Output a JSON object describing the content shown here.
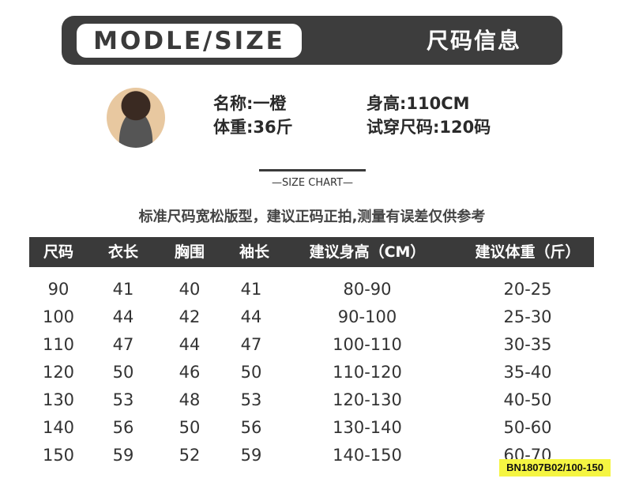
{
  "header": {
    "badge": "MODLE/SIZE",
    "title": "尺码信息"
  },
  "model": {
    "name": "名称:一橙",
    "height": "身高:110CM",
    "weight": "体重:36斤",
    "size": "试穿尺码:120码"
  },
  "size_chart_label": "—SIZE CHART—",
  "note": "标准尺码宽松版型，建议正码正拍,测量有误差仅供参考",
  "table": {
    "headers": [
      "尺码",
      "衣长",
      "胸围",
      "袖长",
      "建议身高（CM）",
      "建议体重（斤）"
    ],
    "rows": [
      [
        "90",
        "41",
        "40",
        "41",
        "80-90",
        "20-25"
      ],
      [
        "100",
        "44",
        "42",
        "44",
        "90-100",
        "25-30"
      ],
      [
        "110",
        "47",
        "44",
        "47",
        "100-110",
        "30-35"
      ],
      [
        "120",
        "50",
        "46",
        "50",
        "110-120",
        "35-40"
      ],
      [
        "130",
        "53",
        "48",
        "53",
        "120-130",
        "40-50"
      ],
      [
        "140",
        "56",
        "50",
        "56",
        "130-140",
        "50-60"
      ],
      [
        "150",
        "59",
        "52",
        "59",
        "140-150",
        "60-70"
      ]
    ]
  },
  "product_code": "BN1807B02/100-150"
}
